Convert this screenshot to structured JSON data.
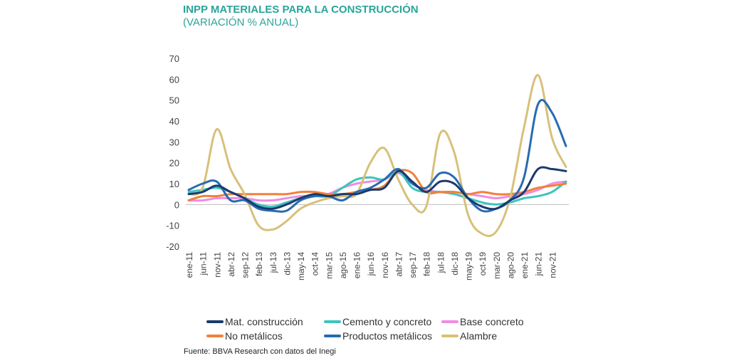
{
  "chart_data": {
    "type": "line",
    "title": "INPP MATERIALES PARA LA CONSTRUCCIÓN",
    "subtitle": "(VARIACIÓN % ANUAL)",
    "xlabel": "",
    "ylabel": "",
    "ylim": [
      -20,
      70
    ],
    "yticks": [
      -20,
      -10,
      0,
      10,
      20,
      30,
      40,
      50,
      60,
      70
    ],
    "grid": false,
    "legend_position": "bottom",
    "tick_labels": [
      "ene-11",
      "jun-11",
      "nov-11",
      "abr-12",
      "sep-12",
      "feb-13",
      "jul-13",
      "dic-13",
      "may-14",
      "oct-14",
      "mar-15",
      "ago-15",
      "ene-16",
      "jun-16",
      "nov-16",
      "abr-17",
      "sep-17",
      "feb-18",
      "jul-18",
      "dic-18",
      "may-19",
      "oct-19",
      "mar-20",
      "ago-20",
      "ene-21",
      "jun-21",
      "nov-21"
    ],
    "x": [
      "ene-11",
      "jun-11",
      "nov-11",
      "abr-12",
      "sep-12",
      "feb-13",
      "jul-13",
      "dic-13",
      "may-14",
      "oct-14",
      "mar-15",
      "ago-15",
      "ene-16",
      "jun-16",
      "nov-16",
      "abr-17",
      "sep-17",
      "feb-18",
      "jul-18",
      "dic-18",
      "may-19",
      "oct-19",
      "mar-20",
      "ago-20",
      "ene-21",
      "jun-21",
      "nov-21",
      "feb-22"
    ],
    "series": [
      {
        "name": "Mat. construcción",
        "color": "#1a3a6e",
        "values": [
          5,
          6,
          9,
          6,
          3,
          -1,
          -2,
          0,
          3,
          5,
          4,
          5,
          5,
          7,
          8,
          16,
          11,
          6,
          11,
          10,
          3,
          -1,
          -2,
          2,
          6,
          17,
          17,
          16
        ]
      },
      {
        "name": "Cemento y concreto",
        "color": "#3cc4bf",
        "values": [
          6,
          7,
          8,
          6,
          3,
          0,
          -1,
          1,
          3,
          4,
          4,
          8,
          12,
          13,
          12,
          16,
          8,
          6,
          6,
          5,
          3,
          1,
          0,
          1,
          3,
          4,
          6,
          11
        ]
      },
      {
        "name": "Base concreto",
        "color": "#f08ce0",
        "values": [
          2,
          2,
          3,
          3,
          3,
          2,
          2,
          3,
          4,
          4,
          5,
          8,
          10,
          11,
          12,
          15,
          10,
          7,
          6,
          6,
          5,
          4,
          3,
          4,
          5,
          7,
          10,
          11
        ]
      },
      {
        "name": "No metálicos",
        "color": "#f0813c",
        "values": [
          2,
          4,
          4,
          5,
          5,
          5,
          5,
          5,
          6,
          6,
          5,
          5,
          6,
          7,
          9,
          16,
          15,
          6,
          6,
          6,
          5,
          6,
          5,
          5,
          6,
          8,
          9,
          10
        ]
      },
      {
        "name": "Productos metálicos",
        "color": "#2a6ab0",
        "values": [
          7,
          10,
          11,
          2,
          2,
          -2,
          -3,
          -3,
          2,
          4,
          4,
          2,
          6,
          8,
          12,
          17,
          10,
          8,
          15,
          13,
          3,
          -3,
          -2,
          2,
          13,
          48,
          44,
          28
        ]
      },
      {
        "name": "Alambre",
        "color": "#d8c07a",
        "values": [
          5,
          8,
          36,
          17,
          5,
          -10,
          -12,
          -8,
          -2,
          1,
          3,
          4,
          5,
          20,
          27,
          12,
          0,
          -1,
          34,
          25,
          -5,
          -14,
          -13,
          3,
          37,
          62,
          32,
          18
        ]
      }
    ]
  },
  "legend": {
    "items": [
      {
        "label": "Mat. construcción",
        "color": "#1a3a6e"
      },
      {
        "label": "Cemento y concreto",
        "color": "#3cc4bf"
      },
      {
        "label": "Base concreto",
        "color": "#f08ce0"
      },
      {
        "label": "No metálicos",
        "color": "#f0813c"
      },
      {
        "label": "Productos metálicos",
        "color": "#2a6ab0"
      },
      {
        "label": "Alambre",
        "color": "#d8c07a"
      }
    ]
  },
  "source": "Fuente: BBVA Research con datos del Inegi"
}
